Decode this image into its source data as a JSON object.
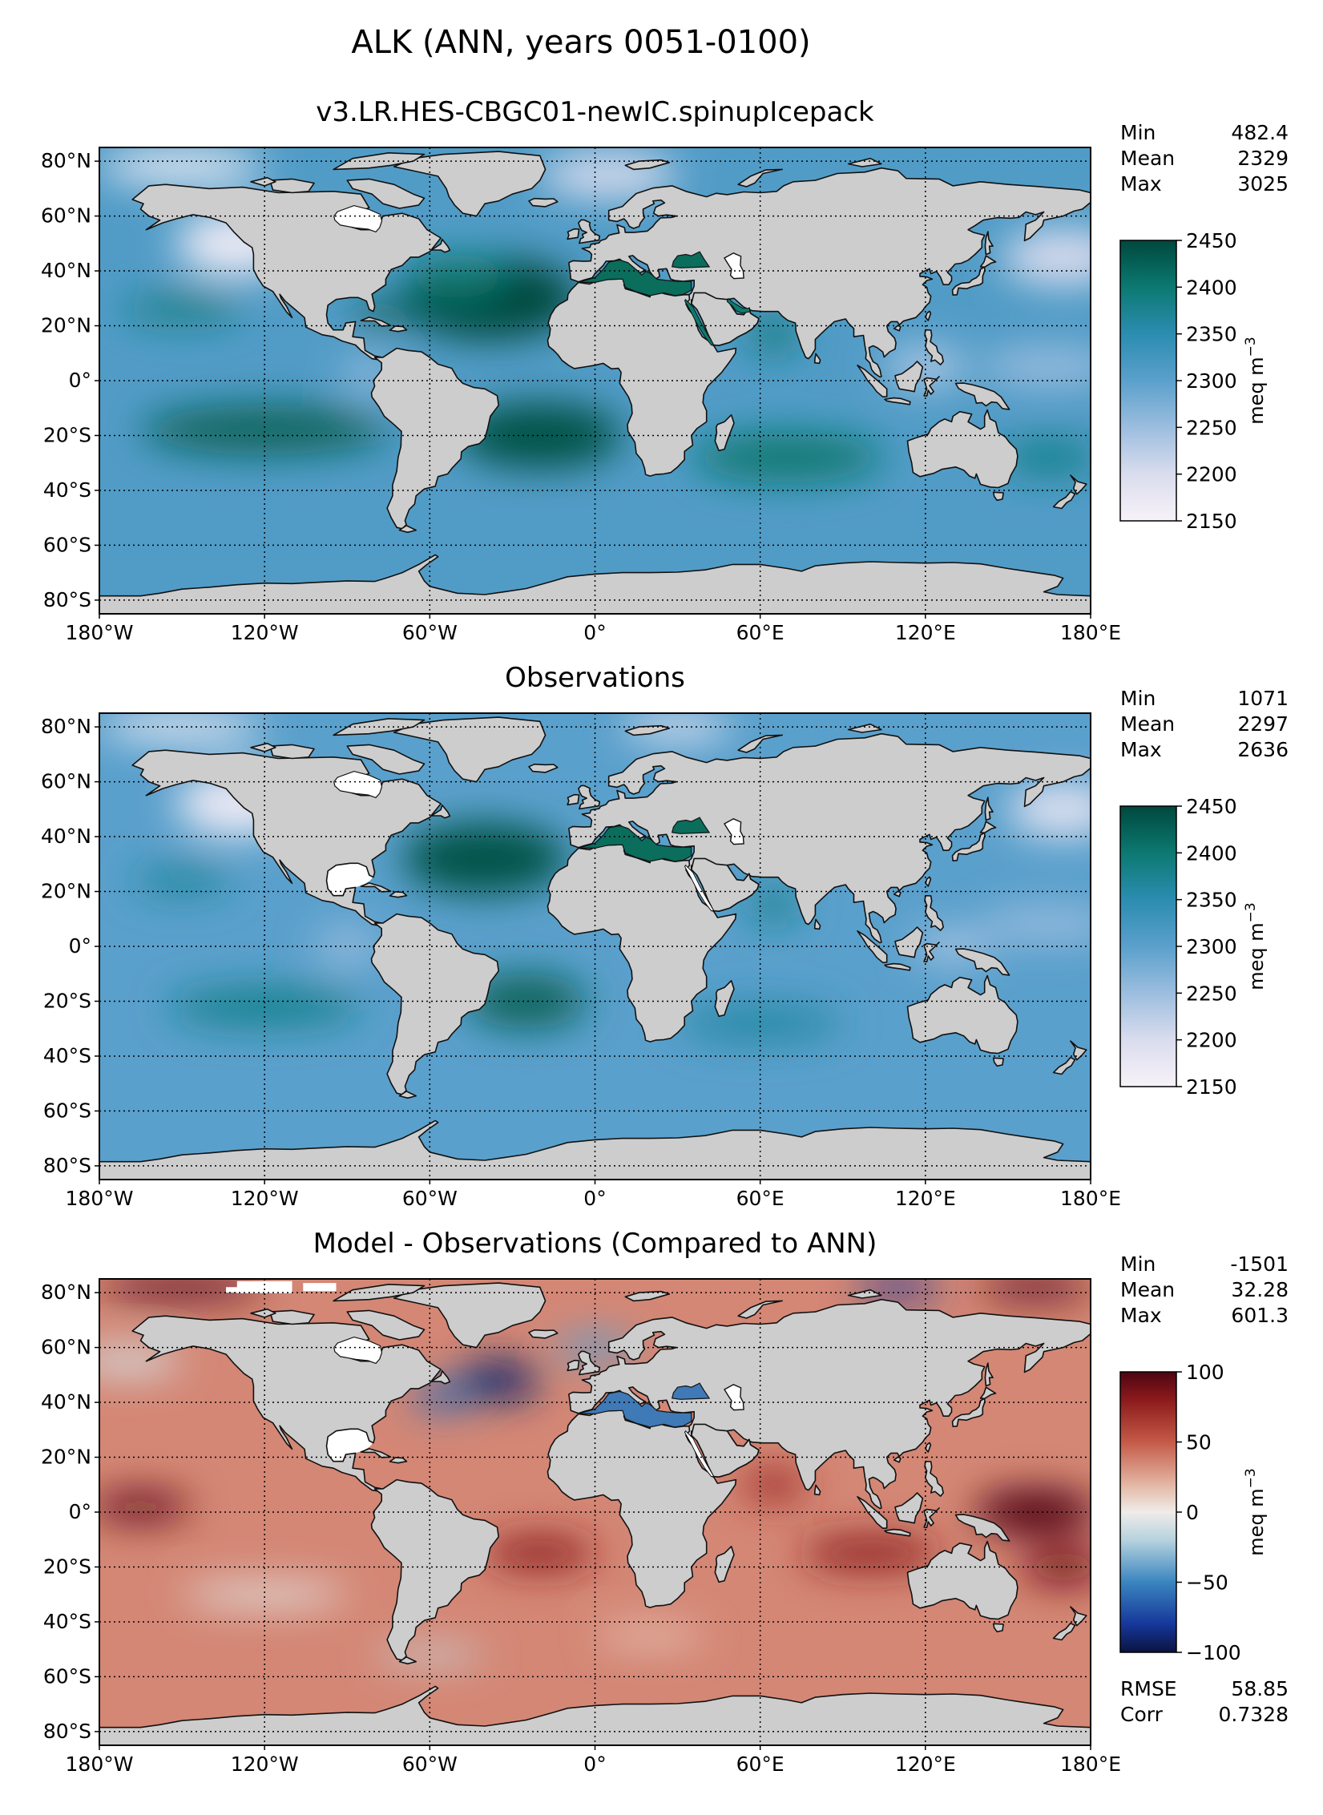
{
  "page_title": "ALK (ANN, years 0051-0100)",
  "colors": {
    "land": "#cdcdcd",
    "coast": "#111111",
    "missing": "#ffffff"
  },
  "panels": [
    {
      "title": "v3.LR.HES-CBGC01-newIC.spinupIcepack",
      "stats_top": [
        {
          "label": "Min",
          "value": "482.4"
        },
        {
          "label": "Mean",
          "value": "2329"
        },
        {
          "label": "Max",
          "value": "3025"
        }
      ],
      "stats_bottom": [],
      "colorbar": {
        "label": "meq m",
        "label_sup": "−3",
        "ticks": [
          "2450",
          "2400",
          "2350",
          "2300",
          "2250",
          "2200",
          "2150"
        ],
        "colormap": "teal"
      },
      "field": "model"
    },
    {
      "title": "Observations",
      "stats_top": [
        {
          "label": "Min",
          "value": "1071"
        },
        {
          "label": "Mean",
          "value": "2297"
        },
        {
          "label": "Max",
          "value": "2636"
        }
      ],
      "stats_bottom": [],
      "colorbar": {
        "label": "meq m",
        "label_sup": "−3",
        "ticks": [
          "2450",
          "2400",
          "2350",
          "2300",
          "2250",
          "2200",
          "2150"
        ],
        "colormap": "teal"
      },
      "field": "obs"
    },
    {
      "title": "Model - Observations (Compared to ANN)",
      "stats_top": [
        {
          "label": "Min",
          "value": "-1501"
        },
        {
          "label": "Mean",
          "value": "32.28"
        },
        {
          "label": "Max",
          "value": "601.3"
        }
      ],
      "stats_bottom": [
        {
          "label": "RMSE",
          "value": "58.85"
        },
        {
          "label": "Corr",
          "value": "0.7328"
        }
      ],
      "colorbar": {
        "label": "meq m",
        "label_sup": "−3",
        "ticks": [
          "100",
          "50",
          "0",
          "−50",
          "−100"
        ],
        "colormap": "diverging"
      },
      "field": "diff"
    }
  ],
  "axes": {
    "lat_labels": [
      "80°N",
      "60°N",
      "40°N",
      "20°N",
      "0°",
      "20°S",
      "40°S",
      "60°S",
      "80°S"
    ],
    "lon_labels": [
      "180°W",
      "120°W",
      "60°W",
      "0°",
      "60°E",
      "120°E",
      "180°E"
    ]
  }
}
